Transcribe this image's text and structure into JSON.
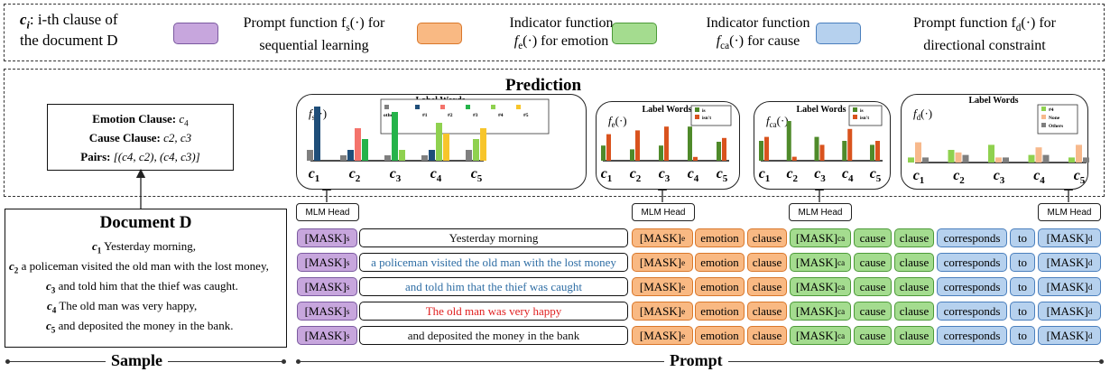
{
  "legend": {
    "ci_symbol": "c",
    "ci_sub": "i",
    "ci_text": ": i-th clause of",
    "ci_text2": "the document D",
    "items": [
      {
        "color": "#c7a6dd",
        "border": "#7b5aa0",
        "line1": "Prompt function f",
        "sub1": "s",
        "tail1": "(·) for",
        "line2": "sequential learning"
      },
      {
        "color": "#f9b983",
        "border": "#d9772a",
        "line1": "Indicator function",
        "sub1": "",
        "tail1": "",
        "line2": "f",
        "sub2": "e",
        "tail2": "(·) for emotion"
      },
      {
        "color": "#a4dc8f",
        "border": "#4c9a38",
        "line1": "Indicator function",
        "sub1": "",
        "tail1": "",
        "line2": "f",
        "sub2": "ca",
        "tail2": "(·) for cause"
      },
      {
        "color": "#b6d1ee",
        "border": "#4a7fbd",
        "line1": "Prompt function f",
        "sub1": "d",
        "tail1": "(·) for",
        "line2": "directional constraint"
      }
    ]
  },
  "prediction_title": "Prediction",
  "emotion_box": {
    "emotion_label": "Emotion Clause:",
    "emotion_val": "c",
    "emotion_sub": "4",
    "cause_label": "Cause Clause:",
    "cause_val": "c2, c3",
    "pairs_label": "Pairs:",
    "pairs_val": "[(c4, c2), (c4, c3)]"
  },
  "document": {
    "title": "Document D",
    "clauses": [
      {
        "id": "c",
        "sub": "1",
        "text": "Yesterday morning,"
      },
      {
        "id": "c",
        "sub": "2",
        "text": "a policeman visited the old man with the lost money,"
      },
      {
        "id": "c",
        "sub": "3",
        "text": "and told him that the thief was caught."
      },
      {
        "id": "c",
        "sub": "4",
        "text": "The old man was very happy,"
      },
      {
        "id": "c",
        "sub": "5",
        "text": "and deposited the money in the bank."
      }
    ]
  },
  "sections": {
    "sample": "Sample",
    "prompt": "Prompt"
  },
  "mlm_head": "MLM Head",
  "label_words_title": "Label Words",
  "clause_ticks": [
    "c1",
    "c2",
    "c3",
    "c4",
    "c5"
  ],
  "charts": {
    "fs": {
      "fn": "f",
      "fn_sub": "s",
      "fn_tail": "(·)",
      "legend": [
        "others",
        "#1",
        "#2",
        "#3",
        "#4",
        "#5"
      ],
      "colors": [
        "#7f7f7f",
        "#1f4e79",
        "#f4736b",
        "#25b34a",
        "#8fd14f",
        "#f7c52b"
      ],
      "chart_data": {
        "type": "bar",
        "categories": [
          "c1",
          "c2",
          "c3",
          "c4",
          "c5"
        ],
        "series": [
          {
            "name": "others",
            "values": [
              2,
              1,
              1,
              1,
              2
            ]
          },
          {
            "name": "#1",
            "values": [
              10,
              2,
              0,
              2,
              0
            ]
          },
          {
            "name": "#2",
            "values": [
              0,
              6,
              0,
              0,
              0
            ]
          },
          {
            "name": "#3",
            "values": [
              0,
              4,
              9,
              0,
              0
            ]
          },
          {
            "name": "#4",
            "values": [
              0,
              0,
              2,
              7,
              4
            ]
          },
          {
            "name": "#5",
            "values": [
              0,
              0,
              0,
              5,
              6
            ]
          }
        ]
      }
    },
    "fe": {
      "fn": "f",
      "fn_sub": "e",
      "fn_tail": "(·)",
      "legend": [
        "is",
        "isn't"
      ],
      "colors": [
        "#4f8a2a",
        "#d9531e"
      ],
      "chart_data": {
        "type": "bar",
        "categories": [
          "c1",
          "c2",
          "c3",
          "c4",
          "c5"
        ],
        "series": [
          {
            "name": "is",
            "values": [
              4,
              3,
              4,
              9,
              5
            ]
          },
          {
            "name": "isn't",
            "values": [
              7,
              8,
              9,
              1,
              6
            ]
          }
        ]
      }
    },
    "fca": {
      "fn": "f",
      "fn_sub": "ca",
      "fn_tail": "(·)",
      "legend": [
        "is",
        "isn't"
      ],
      "colors": [
        "#4f8a2a",
        "#d9531e"
      ],
      "chart_data": {
        "type": "bar",
        "categories": [
          "c1",
          "c2",
          "c3",
          "c4",
          "c5"
        ],
        "series": [
          {
            "name": "is",
            "values": [
              5,
              10,
              6,
              5,
              4
            ]
          },
          {
            "name": "isn't",
            "values": [
              6,
              1,
              4,
              8,
              5
            ]
          }
        ]
      }
    },
    "fd": {
      "fn": "f",
      "fn_sub": "d",
      "fn_tail": "(·)",
      "legend": [
        "#4",
        "None",
        "Others"
      ],
      "colors": [
        "#8fd14f",
        "#f7b98c",
        "#7f7f7f"
      ],
      "chart_data": {
        "type": "bar",
        "categories": [
          "c1",
          "c2",
          "c3",
          "c4",
          "c5"
        ],
        "series": [
          {
            "name": "#4",
            "values": [
              2,
              5,
              7,
              3,
              2
            ]
          },
          {
            "name": "None",
            "values": [
              8,
              4,
              2,
              6,
              7
            ]
          },
          {
            "name": "Others",
            "values": [
              2,
              3,
              2,
              3,
              2
            ]
          }
        ]
      }
    }
  },
  "prompt_rows": [
    {
      "text": "Yesterday morning",
      "color": "#111111"
    },
    {
      "text": "a policeman visited the old man with the lost money",
      "color": "#2e6da4"
    },
    {
      "text": "and told him that the thief was caught",
      "color": "#2e6da4"
    },
    {
      "text": "The old man was very happy",
      "color": "#e02020"
    },
    {
      "text": "and deposited the money in the bank",
      "color": "#111111"
    }
  ],
  "tokens": {
    "mask": "[MASK]",
    "s": "s",
    "e": "e",
    "ca": "ca",
    "d": "d",
    "emotion": "emotion",
    "clause": "clause",
    "cause": "cause",
    "corresponds": "corresponds",
    "to": "to"
  }
}
